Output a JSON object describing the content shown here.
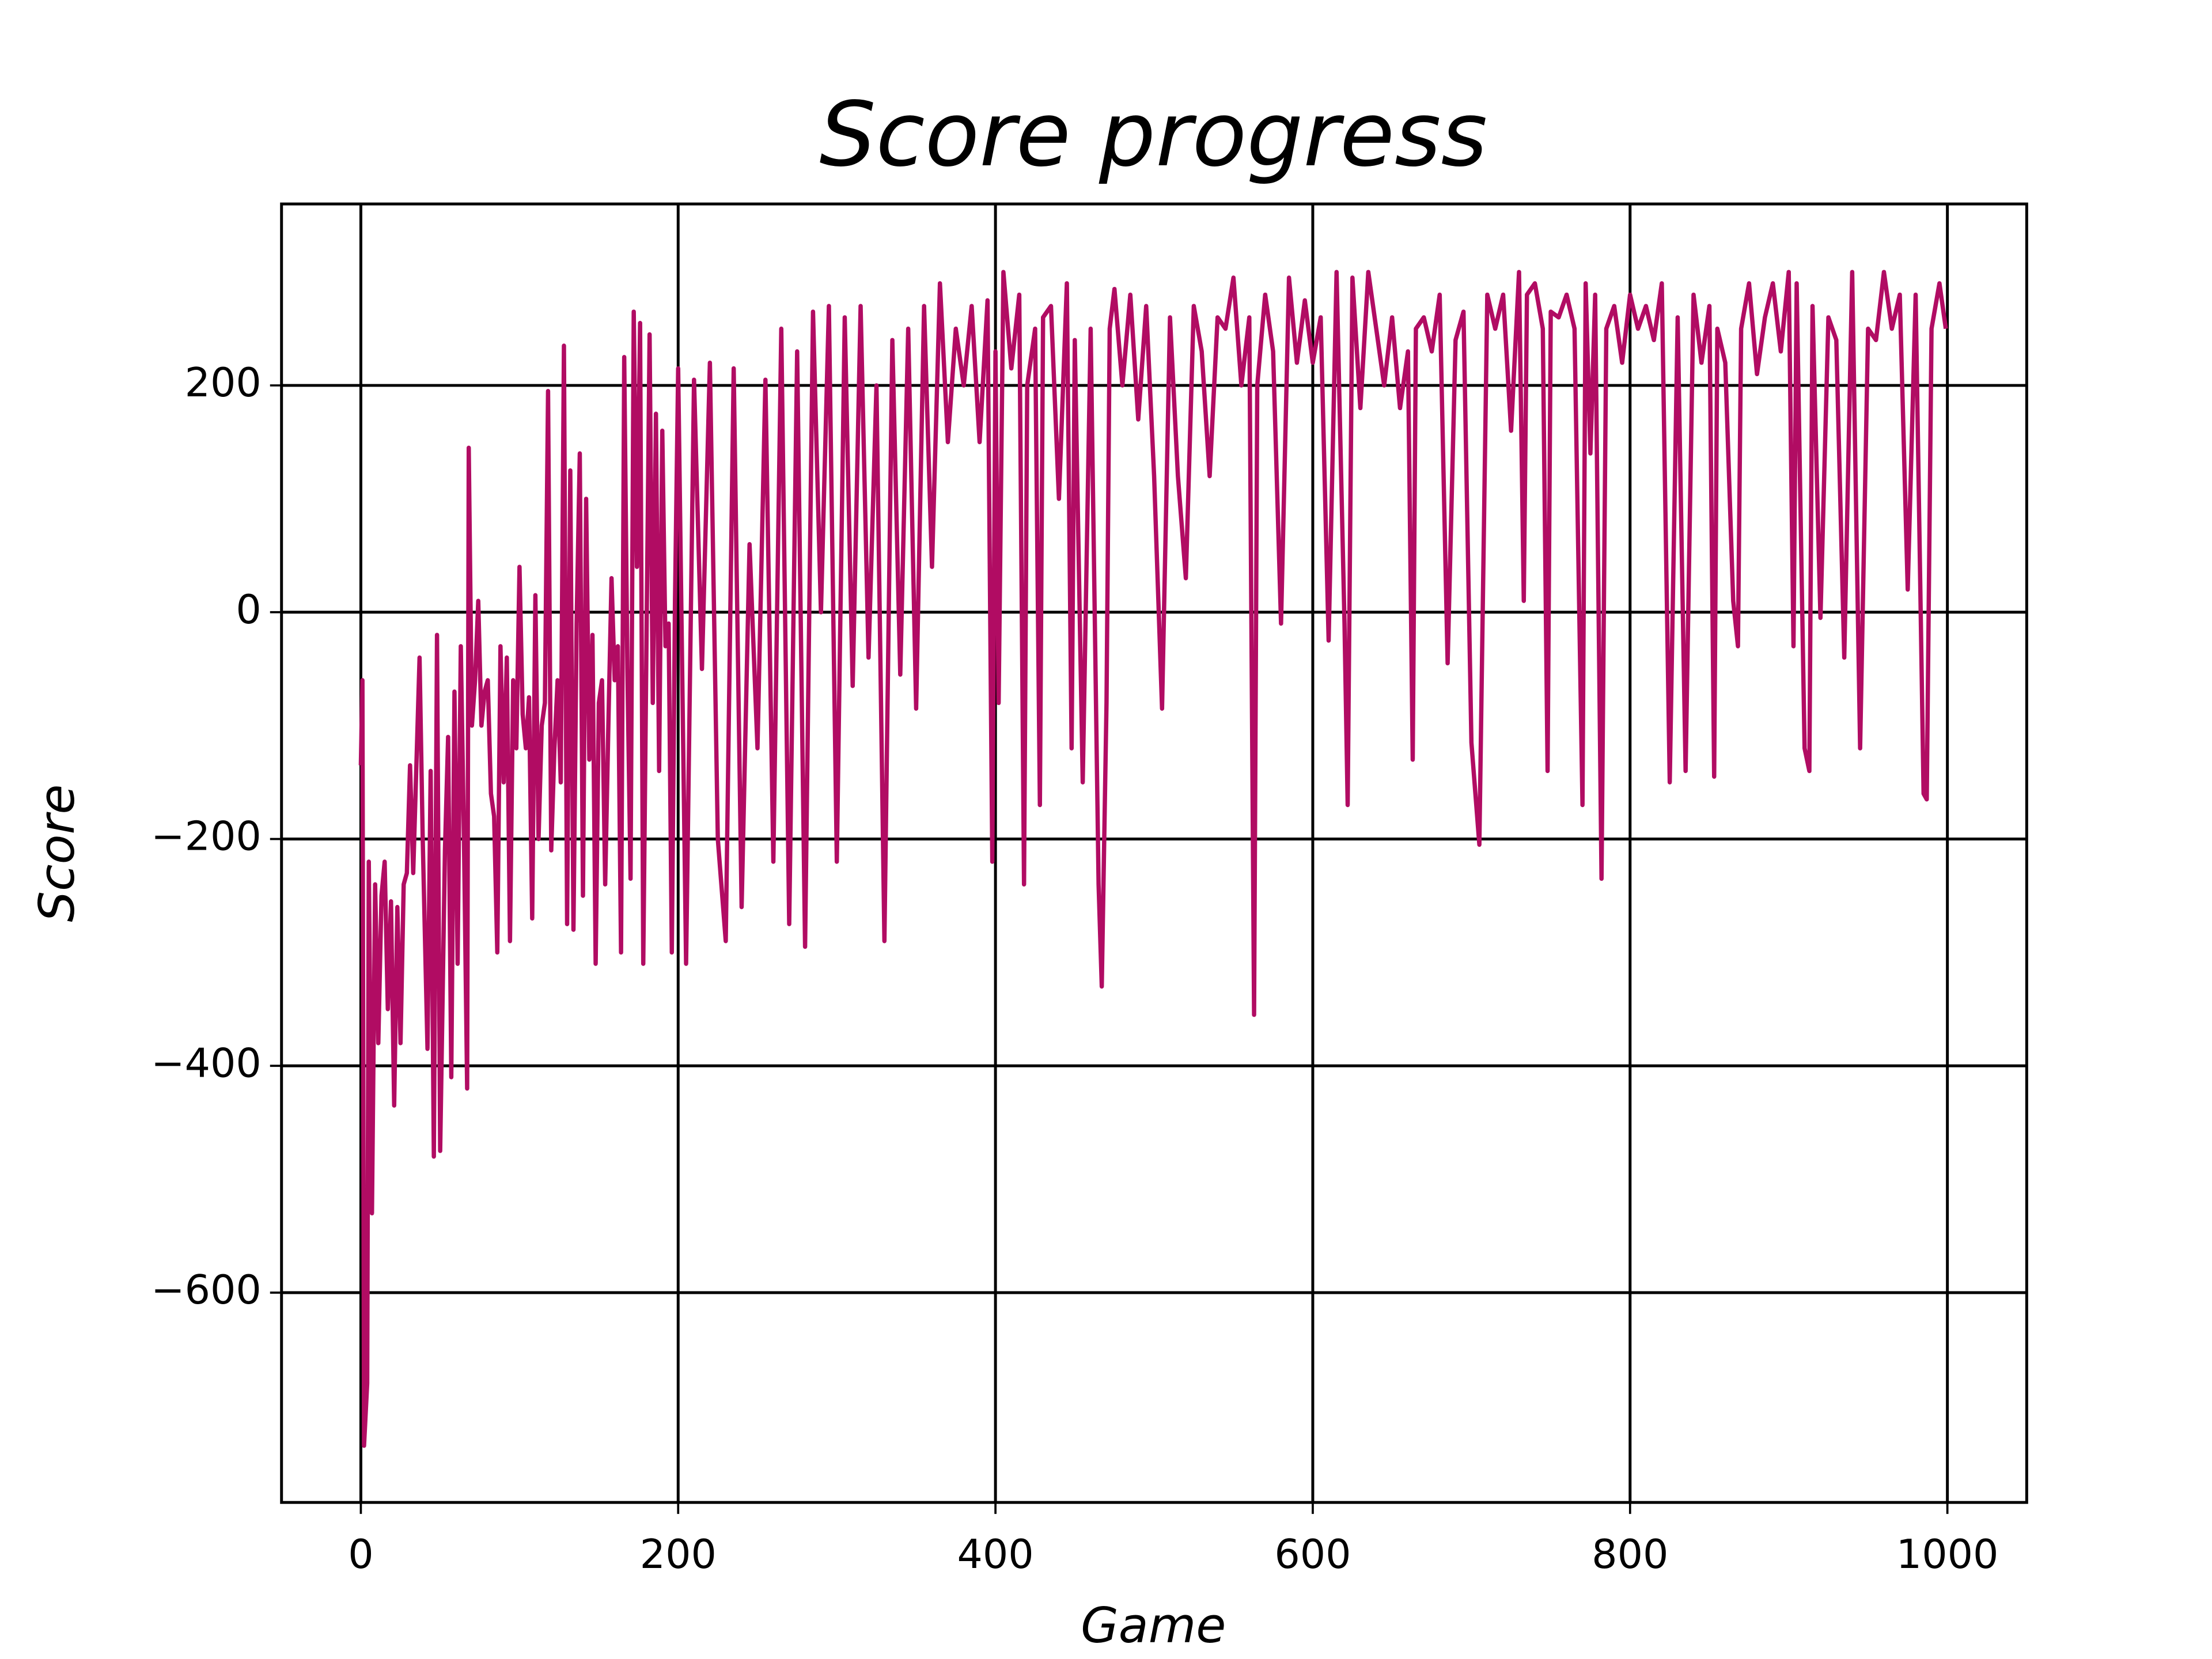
{
  "chart_data": {
    "type": "line",
    "title": "Score progress",
    "x_label": "Game",
    "y_label": "Score",
    "x": [
      0,
      1,
      2,
      4,
      5,
      7,
      9,
      11,
      13,
      15,
      17,
      19,
      21,
      23,
      25,
      27,
      29,
      31,
      33,
      37,
      39,
      42,
      44,
      46,
      48,
      50,
      53,
      55,
      57,
      59,
      61,
      63,
      65,
      67,
      68,
      70,
      72,
      74,
      76,
      78,
      80,
      82,
      84,
      86,
      88,
      90,
      92,
      94,
      96,
      98,
      100,
      102,
      104,
      106,
      108,
      110,
      112,
      114,
      116,
      118,
      120,
      122,
      124,
      126,
      128,
      130,
      132,
      134,
      136,
      138,
      140,
      142,
      144,
      146,
      148,
      150,
      152,
      154,
      156,
      158,
      160,
      162,
      164,
      166,
      168,
      170,
      172,
      174,
      176,
      178,
      180,
      182,
      184,
      186,
      188,
      190,
      192,
      194,
      196,
      198,
      200,
      205,
      210,
      215,
      220,
      225,
      230,
      235,
      240,
      245,
      250,
      255,
      260,
      265,
      270,
      275,
      280,
      285,
      290,
      295,
      300,
      305,
      310,
      315,
      320,
      325,
      330,
      335,
      340,
      345,
      350,
      355,
      360,
      365,
      370,
      375,
      380,
      385,
      390,
      395,
      398,
      400,
      402,
      405,
      410,
      415,
      418,
      420,
      425,
      428,
      430,
      435,
      440,
      445,
      448,
      450,
      455,
      460,
      465,
      467,
      470,
      472,
      475,
      480,
      485,
      490,
      495,
      500,
      505,
      510,
      515,
      520,
      525,
      530,
      535,
      540,
      545,
      550,
      555,
      560,
      563,
      565,
      570,
      575,
      580,
      585,
      590,
      595,
      600,
      605,
      610,
      615,
      620,
      622,
      625,
      630,
      635,
      640,
      645,
      650,
      655,
      660,
      663,
      665,
      670,
      675,
      680,
      685,
      690,
      695,
      700,
      705,
      710,
      715,
      720,
      725,
      730,
      733,
      735,
      740,
      745,
      748,
      750,
      755,
      760,
      765,
      770,
      772,
      775,
      778,
      782,
      785,
      790,
      795,
      800,
      805,
      810,
      815,
      820,
      825,
      830,
      835,
      840,
      845,
      850,
      853,
      855,
      860,
      865,
      868,
      870,
      875,
      880,
      885,
      890,
      895,
      900,
      903,
      905,
      910,
      913,
      915,
      920,
      925,
      930,
      935,
      940,
      945,
      950,
      955,
      960,
      965,
      970,
      975,
      980,
      985,
      987,
      990,
      995,
      999
    ],
    "series": [
      {
        "name": "Score",
        "color": "#b10c63",
        "values": [
          -135,
          -60,
          -735,
          -680,
          -220,
          -530,
          -240,
          -380,
          -250,
          -220,
          -350,
          -255,
          -435,
          -260,
          -380,
          -240,
          -230,
          -135,
          -230,
          -40,
          -200,
          -385,
          -140,
          -480,
          -20,
          -475,
          -210,
          -110,
          -410,
          -70,
          -310,
          -30,
          -200,
          -420,
          145,
          -100,
          -60,
          10,
          -100,
          -70,
          -60,
          -160,
          -180,
          -300,
          -30,
          -150,
          -40,
          -290,
          -60,
          -120,
          40,
          -90,
          -120,
          -75,
          -270,
          15,
          -200,
          -100,
          -80,
          195,
          -210,
          -120,
          -60,
          -150,
          235,
          -275,
          125,
          -280,
          -10,
          140,
          -250,
          100,
          -130,
          -20,
          -310,
          -80,
          -60,
          -240,
          -100,
          30,
          -60,
          -30,
          -300,
          225,
          -50,
          -235,
          265,
          40,
          255,
          -310,
          -30,
          245,
          -80,
          175,
          -140,
          160,
          -30,
          -10,
          -300,
          10,
          215,
          -310,
          205,
          -50,
          220,
          -200,
          -290,
          215,
          -260,
          60,
          -120,
          205,
          -220,
          250,
          -275,
          230,
          -295,
          265,
          0,
          270,
          -220,
          260,
          -65,
          270,
          -40,
          200,
          -290,
          240,
          -55,
          250,
          -85,
          270,
          40,
          290,
          150,
          250,
          200,
          270,
          150,
          275,
          -220,
          230,
          -80,
          300,
          215,
          280,
          -240,
          200,
          250,
          -170,
          260,
          270,
          100,
          290,
          -120,
          240,
          -150,
          250,
          -240,
          -330,
          -80,
          250,
          285,
          200,
          280,
          170,
          270,
          120,
          -85,
          260,
          120,
          30,
          270,
          230,
          120,
          260,
          250,
          295,
          200,
          260,
          -355,
          200,
          280,
          230,
          -10,
          295,
          220,
          275,
          220,
          260,
          -25,
          300,
          -10,
          -170,
          295,
          180,
          300,
          250,
          200,
          260,
          180,
          230,
          -130,
          250,
          260,
          230,
          280,
          -45,
          240,
          265,
          -115,
          -205,
          280,
          250,
          280,
          160,
          300,
          10,
          280,
          290,
          250,
          -140,
          265,
          260,
          280,
          250,
          -170,
          290,
          140,
          280,
          -235,
          250,
          270,
          220,
          280,
          250,
          270,
          240,
          290,
          -150,
          260,
          -140,
          280,
          220,
          270,
          -145,
          250,
          220,
          10,
          -30,
          250,
          290,
          210,
          260,
          290,
          230,
          300,
          -30,
          290,
          -120,
          -140,
          270,
          -5,
          260,
          240,
          -40,
          300,
          -120,
          250,
          240,
          300,
          250,
          280,
          20,
          280,
          -160,
          -165,
          250,
          290,
          250
        ]
      }
    ],
    "xlim": [
      -50,
      1050
    ],
    "ylim": [
      -785,
      360
    ],
    "xticks": [
      0,
      200,
      400,
      600,
      800,
      1000
    ],
    "yticks": [
      {
        "value": -600,
        "label": "−600"
      },
      {
        "value": -400,
        "label": "−400"
      },
      {
        "value": -200,
        "label": "−200"
      },
      0,
      200
    ],
    "grid": true
  }
}
